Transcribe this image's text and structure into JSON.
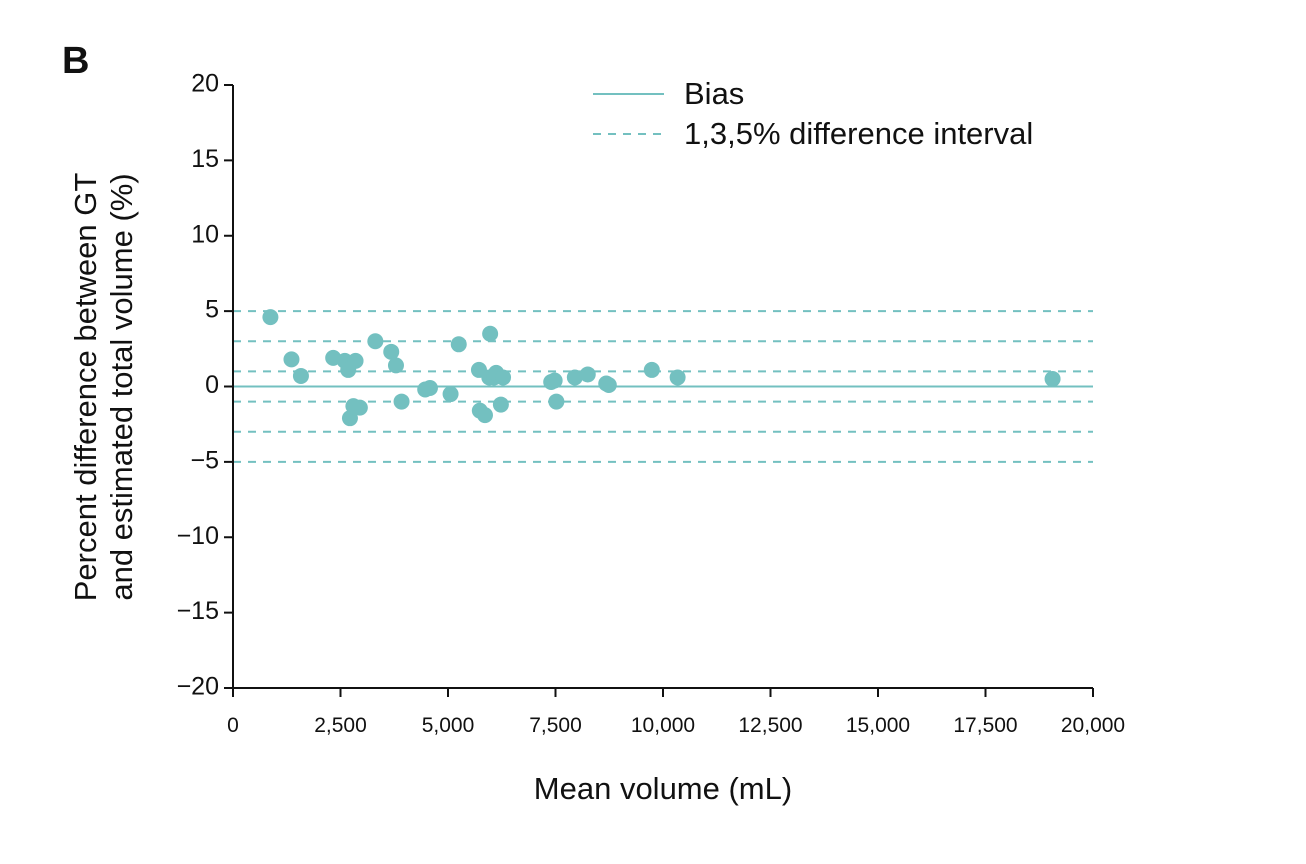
{
  "panel_label": "B",
  "colors": {
    "accent": "#73c0c0",
    "axis": "#111111"
  },
  "chart_data": {
    "type": "scatter",
    "title": "",
    "xlabel": "Mean volume (mL)",
    "ylabel_line1": "Percent difference between GT",
    "ylabel_line2": "and estimated total volume (%)",
    "xlim": [
      0,
      20000
    ],
    "ylim": [
      -20,
      20
    ],
    "x_ticks": [
      0,
      2500,
      5000,
      7500,
      10000,
      12500,
      15000,
      17500,
      20000
    ],
    "x_tick_labels": [
      "0",
      "2,500",
      "5,000",
      "7,500",
      "10,000",
      "12,500",
      "15,000",
      "17,500",
      "20,000"
    ],
    "y_ticks": [
      20,
      15,
      10,
      5,
      0,
      -5,
      -10,
      -15,
      -20
    ],
    "y_tick_labels": [
      "20",
      "15",
      "10",
      "5",
      "0",
      "−5",
      "−10",
      "−15",
      "−20"
    ],
    "bias": 0,
    "difference_intervals": [
      1,
      -1,
      3,
      -3,
      5,
      -5
    ],
    "legend": {
      "position": "top",
      "bias_label": "Bias",
      "interval_label": "1,3,5% difference interval"
    },
    "points": [
      {
        "x": 870,
        "y": 4.6
      },
      {
        "x": 1360,
        "y": 1.8
      },
      {
        "x": 1580,
        "y": 0.7
      },
      {
        "x": 2330,
        "y": 1.9
      },
      {
        "x": 2600,
        "y": 1.7
      },
      {
        "x": 2680,
        "y": 1.1
      },
      {
        "x": 2720,
        "y": -2.1
      },
      {
        "x": 2800,
        "y": -1.3
      },
      {
        "x": 2850,
        "y": 1.7
      },
      {
        "x": 2950,
        "y": -1.4
      },
      {
        "x": 3310,
        "y": 3.0
      },
      {
        "x": 3680,
        "y": 2.3
      },
      {
        "x": 3790,
        "y": 1.4
      },
      {
        "x": 3920,
        "y": -1.0
      },
      {
        "x": 4470,
        "y": -0.2
      },
      {
        "x": 4580,
        "y": -0.1
      },
      {
        "x": 5060,
        "y": -0.5
      },
      {
        "x": 5250,
        "y": 2.8
      },
      {
        "x": 5720,
        "y": 1.1
      },
      {
        "x": 5740,
        "y": -1.6
      },
      {
        "x": 5860,
        "y": -1.9
      },
      {
        "x": 5960,
        "y": 0.6
      },
      {
        "x": 5980,
        "y": 3.5
      },
      {
        "x": 6070,
        "y": 0.6
      },
      {
        "x": 6120,
        "y": 0.9
      },
      {
        "x": 6230,
        "y": -1.2
      },
      {
        "x": 6280,
        "y": 0.6
      },
      {
        "x": 7400,
        "y": 0.3
      },
      {
        "x": 7480,
        "y": 0.4
      },
      {
        "x": 7520,
        "y": -1.0
      },
      {
        "x": 7950,
        "y": 0.6
      },
      {
        "x": 8250,
        "y": 0.8
      },
      {
        "x": 8680,
        "y": 0.2
      },
      {
        "x": 8740,
        "y": 0.1
      },
      {
        "x": 9740,
        "y": 1.1
      },
      {
        "x": 10340,
        "y": 0.6
      },
      {
        "x": 19060,
        "y": 0.5
      }
    ]
  }
}
